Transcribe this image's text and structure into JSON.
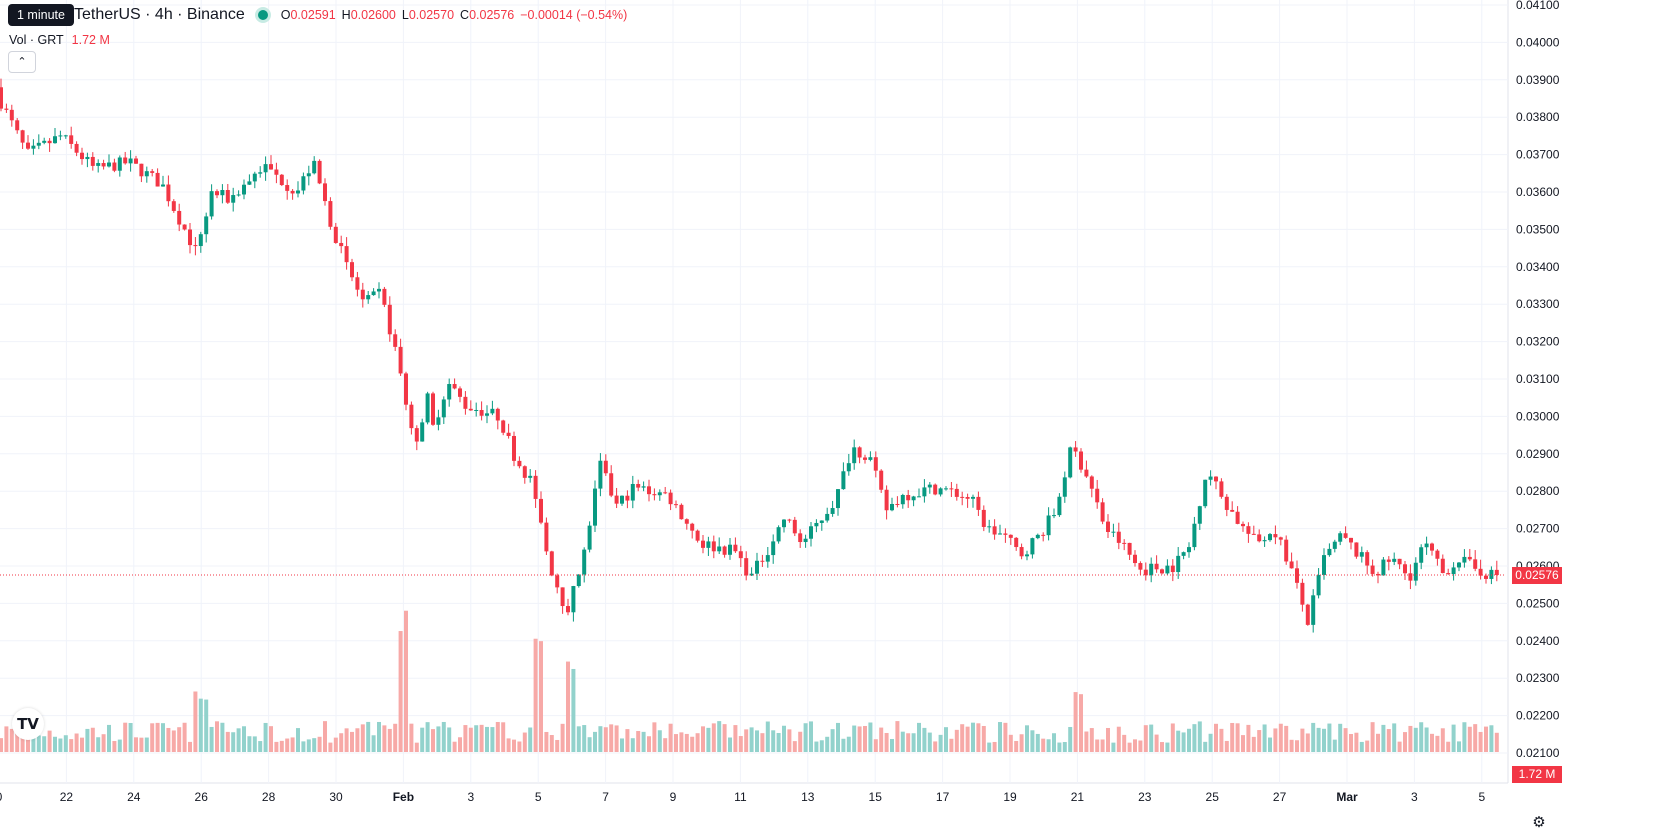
{
  "header": {
    "tooltip": "1 minute",
    "symbol_title": "TetherUS · 4h · Binance",
    "ohlc": [
      {
        "k": "O",
        "v": "0.02591"
      },
      {
        "k": "H",
        "v": "0.02600"
      },
      {
        "k": "L",
        "v": "0.02570"
      },
      {
        "k": "C",
        "v": "0.02576"
      }
    ],
    "change": "−0.00014 (−0.54%)",
    "volume_label": "Vol · GRT",
    "volume_value": "1.72 M",
    "collapse_icon": "chevron-up-icon"
  },
  "price_axis": {
    "ticks": [
      "0.04100",
      "0.04000",
      "0.03900",
      "0.03800",
      "0.03700",
      "0.03600",
      "0.03500",
      "0.03400",
      "0.03300",
      "0.03200",
      "0.03100",
      "0.03000",
      "0.02900",
      "0.02800",
      "0.02700",
      "0.02600",
      "0.02500",
      "0.02400",
      "0.02300",
      "0.02200",
      "0.02100"
    ],
    "last_price_label": "0.02576",
    "volume_label": "1.72 M"
  },
  "time_axis": {
    "ticks": [
      "0",
      "22",
      "24",
      "26",
      "28",
      "30",
      "Feb",
      "3",
      "5",
      "7",
      "9",
      "11",
      "13",
      "15",
      "17",
      "19",
      "21",
      "23",
      "25",
      "27",
      "Mar",
      "3",
      "5"
    ],
    "bold": [
      "Feb",
      "Mar"
    ]
  },
  "colors": {
    "up": "#089981",
    "down": "#f23645",
    "vol_up": "#92d2cc",
    "vol_down": "#f7a9a7",
    "grid": "#f0f3fa"
  },
  "logo_icon": "tradingview-logo-icon",
  "settings_icon": "gear-icon",
  "chart_data": {
    "type": "candlestick",
    "interval": "4h",
    "y_range": [
      0.021,
      0.041
    ],
    "last_close": 0.02576,
    "anchors": [
      {
        "date": "Jan 20",
        "price": 0.0388
      },
      {
        "date": "Jan 21",
        "price": 0.037
      },
      {
        "date": "Jan 22",
        "price": 0.0375
      },
      {
        "date": "Jan 23",
        "price": 0.0366
      },
      {
        "date": "Jan 24",
        "price": 0.0368
      },
      {
        "date": "Jan 25",
        "price": 0.0362
      },
      {
        "date": "Jan 26",
        "price": 0.0344
      },
      {
        "date": "Jan 26",
        "price": 0.036
      },
      {
        "date": "Jan 27",
        "price": 0.0358
      },
      {
        "date": "Jan 28",
        "price": 0.0367
      },
      {
        "date": "Jan 29",
        "price": 0.036
      },
      {
        "date": "Jan 29",
        "price": 0.0368
      },
      {
        "date": "Jan 30",
        "price": 0.0352
      },
      {
        "date": "Jan 30",
        "price": 0.034
      },
      {
        "date": "Jan 31",
        "price": 0.033
      },
      {
        "date": "Jan 31",
        "price": 0.0333
      },
      {
        "date": "Feb 1",
        "price": 0.0315
      },
      {
        "date": "Feb 1",
        "price": 0.0292
      },
      {
        "date": "Feb 1",
        "price": 0.0307
      },
      {
        "date": "Feb 2",
        "price": 0.0296
      },
      {
        "date": "Feb 2",
        "price": 0.0309
      },
      {
        "date": "Feb 3",
        "price": 0.0303
      },
      {
        "date": "Feb 4",
        "price": 0.03
      },
      {
        "date": "Feb 4",
        "price": 0.0289
      },
      {
        "date": "Feb 5",
        "price": 0.0282
      },
      {
        "date": "Feb 5",
        "price": 0.0261
      },
      {
        "date": "Feb 6",
        "price": 0.0248
      },
      {
        "date": "Feb 6",
        "price": 0.0261
      },
      {
        "date": "Feb 7",
        "price": 0.0287
      },
      {
        "date": "Feb 7",
        "price": 0.0276
      },
      {
        "date": "Feb 8",
        "price": 0.0281
      },
      {
        "date": "Feb 9",
        "price": 0.0279
      },
      {
        "date": "Feb 9",
        "price": 0.0273
      },
      {
        "date": "Feb 10",
        "price": 0.0266
      },
      {
        "date": "Feb 11",
        "price": 0.0264
      },
      {
        "date": "Feb 11",
        "price": 0.0257
      },
      {
        "date": "Feb 12",
        "price": 0.0265
      },
      {
        "date": "Feb 12",
        "price": 0.0273
      },
      {
        "date": "Feb 13",
        "price": 0.0266
      },
      {
        "date": "Feb 14",
        "price": 0.0278
      },
      {
        "date": "Feb 14",
        "price": 0.0292
      },
      {
        "date": "Feb 15",
        "price": 0.0289
      },
      {
        "date": "Feb 15",
        "price": 0.0275
      },
      {
        "date": "Feb 16",
        "price": 0.0279
      },
      {
        "date": "Feb 17",
        "price": 0.0281
      },
      {
        "date": "Feb 18",
        "price": 0.0278
      },
      {
        "date": "Feb 18",
        "price": 0.027
      },
      {
        "date": "Feb 19",
        "price": 0.0268
      },
      {
        "date": "Feb 19",
        "price": 0.0263
      },
      {
        "date": "Feb 20",
        "price": 0.0268
      },
      {
        "date": "Feb 20",
        "price": 0.0274
      },
      {
        "date": "Feb 21",
        "price": 0.0292
      },
      {
        "date": "Feb 21",
        "price": 0.0283
      },
      {
        "date": "Feb 22",
        "price": 0.027
      },
      {
        "date": "Feb 22",
        "price": 0.0266
      },
      {
        "date": "Feb 23",
        "price": 0.0259
      },
      {
        "date": "Feb 24",
        "price": 0.026
      },
      {
        "date": "Feb 24",
        "price": 0.0265
      },
      {
        "date": "Feb 25",
        "price": 0.0286
      },
      {
        "date": "Feb 25",
        "price": 0.0278
      },
      {
        "date": "Feb 26",
        "price": 0.0271
      },
      {
        "date": "Feb 26",
        "price": 0.0266
      },
      {
        "date": "Feb 27",
        "price": 0.027
      },
      {
        "date": "Feb 27",
        "price": 0.026
      },
      {
        "date": "Feb 28",
        "price": 0.0245
      },
      {
        "date": "Feb 28",
        "price": 0.0262
      },
      {
        "date": "Feb 29",
        "price": 0.0268
      },
      {
        "date": "Mar 1",
        "price": 0.0258
      },
      {
        "date": "Mar 1",
        "price": 0.0262
      },
      {
        "date": "Mar 2",
        "price": 0.0257
      },
      {
        "date": "Mar 2",
        "price": 0.0266
      },
      {
        "date": "Mar 3",
        "price": 0.0258
      },
      {
        "date": "Mar 3",
        "price": 0.0262
      },
      {
        "date": "Mar 4",
        "price": 0.0259
      },
      {
        "date": "Mar 4",
        "price": 0.02576
      }
    ],
    "volume_spikes_M": [
      {
        "date": "Feb 1",
        "value": 4.7
      },
      {
        "date": "Feb 5",
        "value": 3.1
      },
      {
        "date": "Feb 5",
        "value": 4.0
      },
      {
        "date": "Feb 6",
        "value": 3.0
      },
      {
        "date": "Feb 21",
        "value": 3.0
      },
      {
        "date": "Feb 21",
        "value": 2.5
      },
      {
        "date": "Jan 26",
        "value": 2.1
      }
    ],
    "grid": true
  }
}
